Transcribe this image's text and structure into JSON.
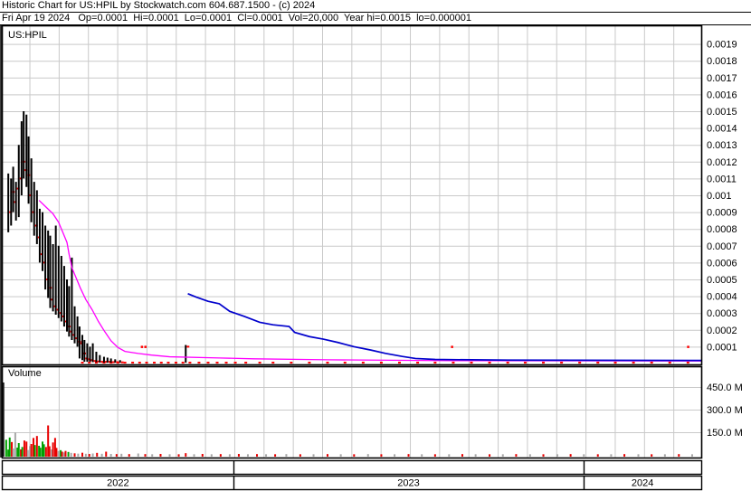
{
  "header": {
    "line1": "Historic Chart for US:HPIL by Stockwatch.com 604.687.1500 - (c) 2024",
    "line2": "Fri Apr 19 2024   Op=0.0001  Hi=0.0001  Lo=0.0001  Cl=0.0001  Vol=20,000  Year hi=0.0015  lo=0.000001"
  },
  "price_pane": {
    "symbol": "US:HPIL"
  },
  "volume_pane": {
    "label": "Volume"
  },
  "chart_data": {
    "type": "candlestick",
    "title": "Historic Chart for US:HPIL by Stockwatch.com",
    "date": "Fri Apr 19 2024",
    "quote": {
      "op": "0.0001",
      "hi": "0.0001",
      "lo": "0.0001",
      "cl": "0.0001",
      "vol": "20,000",
      "year_hi": "0.0015",
      "year_lo": "0.000001"
    },
    "price_axis": {
      "min": 0,
      "max": 0.002,
      "tick_step": 0.0001,
      "tick_labels": [
        "0.0019",
        "0.0018",
        "0.0017",
        "0.0016",
        "0.0015",
        "0.0014",
        "0.0013",
        "0.0012",
        "0.0011",
        "0.001",
        "0.0009",
        "0.0008",
        "0.0007",
        "0.0006",
        "0.0005",
        "0.0004",
        "0.0003",
        "0.0002",
        "0.0001"
      ],
      "tick_values": [
        0.0019,
        0.0018,
        0.0017,
        0.0016,
        0.0015,
        0.0014,
        0.0013,
        0.0012,
        0.0011,
        0.001,
        0.0009,
        0.0008,
        0.0007,
        0.0006,
        0.0005,
        0.0004,
        0.0003,
        0.0002,
        0.0001
      ]
    },
    "volume_axis": {
      "tick_labels": [
        "450.0 M",
        "300.0 M",
        "150.0 M"
      ],
      "tick_values_millions": [
        450,
        300,
        150
      ],
      "max_millions": 620
    },
    "x_axis": {
      "year_labels": [
        "2022",
        "2023",
        "2024"
      ],
      "year_boundaries_frac": [
        0,
        0.33,
        0.832,
        1.0
      ]
    },
    "grid": {
      "on": true,
      "color": "#c9c9c9",
      "vertical_first_frac": 0.0389,
      "vertical_step_frac": 0.0419
    },
    "colors": {
      "candle": "#000000",
      "close_tick": "#ff0000",
      "ma_fast": "#ff00ff",
      "ma_slow": "#0000cc",
      "vol_r": "#e80000",
      "vol_g": "#00a000",
      "vol_n": "#a8a8a8",
      "vol_k": "#222222"
    },
    "candles": [
      {
        "x": 0.008,
        "h": 0.00113,
        "l": 0.00078,
        "c": 0.0009
      },
      {
        "x": 0.012,
        "h": 0.0011,
        "l": 0.00082,
        "c": 0.00102
      },
      {
        "x": 0.015,
        "h": 0.00117,
        "l": 0.0009,
        "c": 0.00096
      },
      {
        "x": 0.019,
        "h": 0.00108,
        "l": 0.00085,
        "c": 0.00104
      },
      {
        "x": 0.023,
        "h": 0.0013,
        "l": 0.00087,
        "c": 0.0011
      },
      {
        "x": 0.027,
        "h": 0.00144,
        "l": 0.001,
        "c": 0.0012
      },
      {
        "x": 0.03,
        "h": 0.0015,
        "l": 0.0011,
        "c": 0.00115
      },
      {
        "x": 0.034,
        "h": 0.00148,
        "l": 0.00105,
        "c": 0.00112
      },
      {
        "x": 0.037,
        "h": 0.00135,
        "l": 0.00095,
        "c": 0.001
      },
      {
        "x": 0.041,
        "h": 0.00122,
        "l": 0.00084,
        "c": 0.0009
      },
      {
        "x": 0.045,
        "h": 0.00108,
        "l": 0.00076,
        "c": 0.00082
      },
      {
        "x": 0.049,
        "h": 0.00103,
        "l": 0.00071,
        "c": 0.00075
      },
      {
        "x": 0.053,
        "h": 0.00092,
        "l": 0.0006,
        "c": 0.00065
      },
      {
        "x": 0.057,
        "h": 0.0009,
        "l": 0.00055,
        "c": 0.0006
      },
      {
        "x": 0.061,
        "h": 0.00082,
        "l": 0.00044,
        "c": 0.0005
      },
      {
        "x": 0.065,
        "h": 0.00079,
        "l": 0.00039,
        "c": 0.00045
      },
      {
        "x": 0.068,
        "h": 0.00076,
        "l": 0.00033,
        "c": 0.00038
      },
      {
        "x": 0.072,
        "h": 0.00071,
        "l": 0.00031,
        "c": 0.00034
      },
      {
        "x": 0.076,
        "h": 0.00082,
        "l": 0.00029,
        "c": 0.00032
      },
      {
        "x": 0.08,
        "h": 0.0007,
        "l": 0.00027,
        "c": 0.0003
      },
      {
        "x": 0.084,
        "h": 0.00064,
        "l": 0.00025,
        "c": 0.00028
      },
      {
        "x": 0.088,
        "h": 0.00058,
        "l": 0.00022,
        "c": 0.00025
      },
      {
        "x": 0.092,
        "h": 0.0005,
        "l": 0.00019,
        "c": 0.00022
      },
      {
        "x": 0.095,
        "h": 0.00046,
        "l": 0.00016,
        "c": 0.00019
      },
      {
        "x": 0.099,
        "h": 0.00063,
        "l": 0.00014,
        "c": 0.00017
      },
      {
        "x": 0.103,
        "h": 0.00034,
        "l": 0.00012,
        "c": 0.00015
      },
      {
        "x": 0.107,
        "h": 0.00028,
        "l": 0.0001,
        "c": 0.00013
      },
      {
        "x": 0.11,
        "h": 0.00022,
        "l": 3e-05,
        "c": 0.00012
      },
      {
        "x": 0.114,
        "h": 0.00017,
        "l": 2e-05,
        "c": 6e-05
      },
      {
        "x": 0.117,
        "h": 0.00014,
        "l": 1e-05,
        "c": 3e-05
      },
      {
        "x": 0.121,
        "h": 0.00012,
        "l": 1e-05,
        "c": 2.5e-05
      },
      {
        "x": 0.125,
        "h": 0.0001,
        "l": 1e-05,
        "c": 2e-05
      },
      {
        "x": 0.129,
        "h": 0.00012,
        "l": 8e-06,
        "c": 1.5e-05
      },
      {
        "x": 0.134,
        "h": 7e-05,
        "l": 8e-06,
        "c": 1.2e-05
      },
      {
        "x": 0.139,
        "h": 5e-05,
        "l": 6e-06,
        "c": 1e-05
      },
      {
        "x": 0.145,
        "h": 4e-05,
        "l": 6e-06,
        "c": 1e-05
      },
      {
        "x": 0.15,
        "h": 3.5e-05,
        "l": 5e-06,
        "c": 1e-05
      },
      {
        "x": 0.155,
        "h": 3e-05,
        "l": 5e-06,
        "c": 8e-06
      },
      {
        "x": 0.161,
        "h": 2.5e-05,
        "l": 5e-06,
        "c": 8e-06
      },
      {
        "x": 0.168,
        "h": 2e-05,
        "l": 5e-06,
        "c": 7e-06
      },
      {
        "x": 0.262,
        "h": 0.00011,
        "l": 5e-06,
        "c": 0.0001
      }
    ],
    "ma_fast": {
      "name": "short-moving-average",
      "points": [
        [
          0.052,
          0.00097
        ],
        [
          0.062,
          0.00093
        ],
        [
          0.072,
          0.00089
        ],
        [
          0.08,
          0.00084
        ],
        [
          0.086,
          0.00078
        ],
        [
          0.092,
          0.00072
        ],
        [
          0.095,
          0.00065
        ],
        [
          0.099,
          0.00057
        ],
        [
          0.105,
          0.00051
        ],
        [
          0.111,
          0.00045
        ],
        [
          0.119,
          0.00038
        ],
        [
          0.128,
          0.00032
        ],
        [
          0.137,
          0.00025
        ],
        [
          0.146,
          0.00019
        ],
        [
          0.155,
          0.000135
        ],
        [
          0.165,
          9.5e-05
        ],
        [
          0.175,
          7.2e-05
        ],
        [
          0.194,
          6e-05
        ],
        [
          0.213,
          5e-05
        ],
        [
          0.239,
          4e-05
        ],
        [
          0.31,
          3.3e-05
        ],
        [
          0.359,
          2.8e-05
        ],
        [
          0.465,
          2.2e-05
        ],
        [
          0.645,
          1.7e-05
        ],
        [
          1.0,
          1.5e-05
        ]
      ]
    },
    "ma_slow": {
      "name": "long-moving-average",
      "points": [
        [
          0.265,
          0.000415
        ],
        [
          0.277,
          0.000395
        ],
        [
          0.294,
          0.00037
        ],
        [
          0.31,
          0.000355
        ],
        [
          0.325,
          0.00031
        ],
        [
          0.346,
          0.00028
        ],
        [
          0.368,
          0.000245
        ],
        [
          0.387,
          0.00023
        ],
        [
          0.41,
          0.00022
        ],
        [
          0.418,
          0.000185
        ],
        [
          0.439,
          0.00016
        ],
        [
          0.459,
          0.000145
        ],
        [
          0.48,
          0.000125
        ],
        [
          0.503,
          0.0001
        ],
        [
          0.527,
          8e-05
        ],
        [
          0.548,
          6e-05
        ],
        [
          0.572,
          4.2e-05
        ],
        [
          0.591,
          3e-05
        ],
        [
          0.619,
          2.4e-05
        ],
        [
          0.723,
          2e-05
        ],
        [
          1.0,
          1.8e-05
        ]
      ]
    },
    "trades_at_low": {
      "price": 0.0001,
      "x": [
        0.199,
        0.204,
        0.643,
        0.981
      ]
    },
    "bottom_tick_price": 5e-06,
    "bottom_tick_xs": [
      0.114,
      0.124,
      0.134,
      0.145,
      0.155,
      0.165,
      0.175,
      0.186,
      0.196,
      0.206,
      0.217,
      0.227,
      0.237,
      0.248,
      0.258,
      0.268,
      0.281,
      0.294,
      0.307,
      0.32,
      0.333,
      0.348,
      0.368,
      0.387,
      0.413,
      0.439,
      0.465,
      0.49,
      0.516,
      0.542,
      0.568,
      0.594,
      0.619,
      0.645,
      0.671,
      0.697,
      0.723,
      0.748,
      0.774,
      0.8,
      0.826,
      0.852,
      0.877,
      0.903,
      0.929,
      0.955,
      0.981
    ],
    "volume_bars": [
      [
        0.001,
        480,
        "k"
      ],
      [
        0.005,
        100,
        "g"
      ],
      [
        0.008,
        35,
        "g"
      ],
      [
        0.01,
        115,
        "g"
      ],
      [
        0.013,
        85,
        "r"
      ],
      [
        0.015,
        42,
        "n"
      ],
      [
        0.018,
        148,
        "n"
      ],
      [
        0.021,
        48,
        "g"
      ],
      [
        0.023,
        78,
        "g"
      ],
      [
        0.026,
        36,
        "r"
      ],
      [
        0.028,
        52,
        "g"
      ],
      [
        0.031,
        95,
        "r"
      ],
      [
        0.034,
        88,
        "r"
      ],
      [
        0.036,
        32,
        "n"
      ],
      [
        0.039,
        58,
        "n"
      ],
      [
        0.041,
        72,
        "r"
      ],
      [
        0.044,
        112,
        "r"
      ],
      [
        0.046,
        65,
        "g"
      ],
      [
        0.049,
        125,
        "r"
      ],
      [
        0.052,
        60,
        "g"
      ],
      [
        0.054,
        47,
        "g"
      ],
      [
        0.057,
        88,
        "g"
      ],
      [
        0.059,
        70,
        "g"
      ],
      [
        0.062,
        52,
        "r"
      ],
      [
        0.065,
        195,
        "r"
      ],
      [
        0.067,
        57,
        "r"
      ],
      [
        0.07,
        36,
        "n"
      ],
      [
        0.072,
        82,
        "r"
      ],
      [
        0.075,
        112,
        "r"
      ],
      [
        0.077,
        46,
        "r"
      ],
      [
        0.08,
        26,
        "n"
      ],
      [
        0.083,
        31,
        "g"
      ],
      [
        0.085,
        21,
        "r"
      ],
      [
        0.088,
        16,
        "n"
      ],
      [
        0.09,
        26,
        "r"
      ],
      [
        0.094,
        19,
        "g"
      ],
      [
        0.098,
        13,
        "n"
      ],
      [
        0.103,
        10,
        "r"
      ],
      [
        0.108,
        8,
        "n"
      ],
      [
        0.114,
        14,
        "r"
      ],
      [
        0.119,
        7,
        "n"
      ],
      [
        0.124,
        6,
        "r"
      ],
      [
        0.129,
        9,
        "n"
      ],
      [
        0.135,
        13,
        "r"
      ],
      [
        0.142,
        7,
        "n"
      ],
      [
        0.148,
        21,
        "r"
      ],
      [
        0.155,
        6,
        "n"
      ],
      [
        0.163,
        5,
        "r"
      ],
      [
        0.17,
        7,
        "n"
      ],
      [
        0.181,
        5,
        "r"
      ],
      [
        0.194,
        9,
        "n"
      ],
      [
        0.204,
        5,
        "r"
      ],
      [
        0.214,
        4,
        "n"
      ],
      [
        0.226,
        6,
        "r"
      ],
      [
        0.239,
        4,
        "n"
      ],
      [
        0.252,
        4,
        "r"
      ],
      [
        0.262,
        11,
        "r"
      ],
      [
        0.274,
        4,
        "n"
      ],
      [
        0.286,
        6,
        "r"
      ],
      [
        0.299,
        4,
        "n"
      ],
      [
        0.312,
        5,
        "r"
      ],
      [
        0.325,
        4,
        "n"
      ],
      [
        0.338,
        6,
        "r"
      ],
      [
        0.351,
        4,
        "n"
      ],
      [
        0.364,
        5,
        "r"
      ],
      [
        0.377,
        4,
        "n"
      ],
      [
        0.39,
        4,
        "r"
      ],
      [
        0.406,
        5,
        "n"
      ],
      [
        0.426,
        4,
        "r"
      ],
      [
        0.445,
        4,
        "n"
      ],
      [
        0.465,
        5,
        "r"
      ],
      [
        0.484,
        4,
        "n"
      ],
      [
        0.503,
        4,
        "r"
      ],
      [
        0.523,
        5,
        "n"
      ],
      [
        0.542,
        4,
        "r"
      ],
      [
        0.561,
        4,
        "n"
      ],
      [
        0.581,
        5,
        "r"
      ],
      [
        0.6,
        4,
        "n"
      ],
      [
        0.619,
        4,
        "r"
      ],
      [
        0.639,
        4,
        "n"
      ],
      [
        0.658,
        5,
        "r"
      ],
      [
        0.677,
        4,
        "n"
      ],
      [
        0.697,
        4,
        "r"
      ],
      [
        0.716,
        4,
        "n"
      ],
      [
        0.735,
        5,
        "r"
      ],
      [
        0.755,
        4,
        "n"
      ],
      [
        0.774,
        4,
        "r"
      ],
      [
        0.794,
        4,
        "n"
      ],
      [
        0.813,
        5,
        "r"
      ],
      [
        0.832,
        4,
        "n"
      ],
      [
        0.852,
        4,
        "r"
      ],
      [
        0.871,
        4,
        "n"
      ],
      [
        0.89,
        5,
        "r"
      ],
      [
        0.91,
        4,
        "n"
      ],
      [
        0.929,
        4,
        "r"
      ],
      [
        0.948,
        4,
        "n"
      ],
      [
        0.968,
        5,
        "r"
      ],
      [
        0.987,
        4,
        "n"
      ]
    ]
  }
}
